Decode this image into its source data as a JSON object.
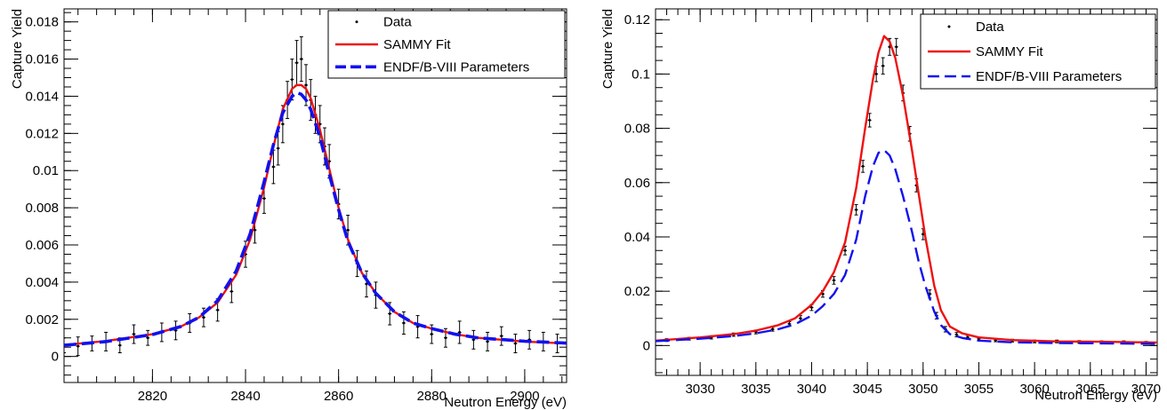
{
  "chart_data": [
    {
      "type": "scatter",
      "xlabel": "Neutron Energy (eV)",
      "ylabel": "Capture Yield",
      "xlim": [
        2801,
        2909
      ],
      "ylim": [
        -0.0014,
        0.0187
      ],
      "xticks": [
        2820,
        2840,
        2860,
        2880,
        2900
      ],
      "xtick_labels": [
        "2820",
        "2840",
        "2860",
        "2880",
        "2900"
      ],
      "yticks": [
        0,
        0.002,
        0.004,
        0.006,
        0.008,
        0.01,
        0.012,
        0.014,
        0.016,
        0.018
      ],
      "ytick_labels": [
        "0",
        "0.002",
        "0.004",
        "0.006",
        "0.008",
        "0.01",
        "0.012",
        "0.014",
        "0.016",
        "0.018"
      ],
      "legend_position": "top-right",
      "grid": false,
      "series": [
        {
          "name": "Data",
          "style": "points-with-errors",
          "color": "#000000",
          "x": [
            2801.0,
            2804.0,
            2807.0,
            2810.0,
            2813.0,
            2816.0,
            2819.0,
            2822.0,
            2825.0,
            2828.0,
            2831.0,
            2834.0,
            2837.0,
            2840.0,
            2842.0,
            2844.0,
            2846.0,
            2847.0,
            2848.0,
            2849.0,
            2850.0,
            2851.0,
            2852.0,
            2853.0,
            2854.0,
            2855.0,
            2856.0,
            2857.0,
            2858.0,
            2860.0,
            2862.0,
            2864.0,
            2866.0,
            2868.0,
            2871.0,
            2874.0,
            2877.0,
            2880.0,
            2883.0,
            2886.0,
            2889.0,
            2892.0,
            2895.0,
            2898.0,
            2901.0,
            2904.0,
            2907.0
          ],
          "y": [
            0.0006,
            0.00055,
            0.0007,
            0.0008,
            0.0006,
            0.0012,
            0.001,
            0.0013,
            0.0014,
            0.0018,
            0.0021,
            0.0025,
            0.0035,
            0.0055,
            0.0068,
            0.0085,
            0.0102,
            0.0112,
            0.0125,
            0.0138,
            0.0149,
            0.0158,
            0.016,
            0.0146,
            0.0138,
            0.013,
            0.0125,
            0.0113,
            0.0105,
            0.0082,
            0.0068,
            0.005,
            0.0039,
            0.0033,
            0.0023,
            0.0018,
            0.0016,
            0.0012,
            0.001,
            0.0013,
            0.0009,
            0.0008,
            0.0011,
            0.0007,
            0.0009,
            0.0008,
            0.0007
          ],
          "yerr": [
            0.0004,
            0.0005,
            0.0004,
            0.0005,
            0.0004,
            0.0005,
            0.0004,
            0.0005,
            0.0005,
            0.0005,
            0.0005,
            0.0006,
            0.0006,
            0.0007,
            0.0007,
            0.0008,
            0.0009,
            0.0009,
            0.001,
            0.001,
            0.0011,
            0.0012,
            0.0012,
            0.0011,
            0.0011,
            0.001,
            0.001,
            0.001,
            0.0009,
            0.0008,
            0.0008,
            0.0007,
            0.0007,
            0.0007,
            0.0006,
            0.0006,
            0.0006,
            0.0005,
            0.0005,
            0.0006,
            0.0005,
            0.0005,
            0.0005,
            0.0005,
            0.0005,
            0.0005,
            0.0005
          ]
        },
        {
          "name": "SAMMY Fit",
          "style": "solid",
          "color": "#ee1111",
          "width": 2.4,
          "x": [
            2801,
            2810,
            2820,
            2826,
            2830,
            2834,
            2838,
            2841,
            2844,
            2846,
            2848,
            2850,
            2851,
            2852,
            2853,
            2854,
            2856,
            2858,
            2860,
            2862,
            2865,
            2868,
            2872,
            2876,
            2880,
            2885,
            2890,
            2900,
            2909
          ],
          "y": [
            0.00062,
            0.00083,
            0.0012,
            0.0016,
            0.0021,
            0.0029,
            0.0044,
            0.0063,
            0.0091,
            0.0113,
            0.0133,
            0.0144,
            0.0146,
            0.0146,
            0.0144,
            0.0139,
            0.0122,
            0.0101,
            0.008,
            0.0063,
            0.0045,
            0.0034,
            0.0024,
            0.0018,
            0.0015,
            0.0012,
            0.001,
            0.0008,
            0.0007
          ]
        },
        {
          "name": "ENDF/B-VIII Parameters",
          "style": "dashed-thick",
          "color": "#1111ee",
          "width": 3.6,
          "x": [
            2801,
            2810,
            2820,
            2826,
            2830,
            2834,
            2838,
            2841,
            2844,
            2846,
            2848,
            2850,
            2851,
            2852,
            2853,
            2854,
            2856,
            2858,
            2860,
            2862,
            2865,
            2868,
            2872,
            2876,
            2880,
            2885,
            2890,
            2900,
            2909
          ],
          "y": [
            0.0006,
            0.0008,
            0.00118,
            0.0016,
            0.0021,
            0.003,
            0.0046,
            0.0066,
            0.0094,
            0.0114,
            0.0131,
            0.014,
            0.0142,
            0.0141,
            0.0138,
            0.0133,
            0.0118,
            0.0098,
            0.0079,
            0.0062,
            0.0045,
            0.0034,
            0.0024,
            0.0018,
            0.0015,
            0.0012,
            0.001,
            0.00082,
            0.00072
          ]
        }
      ]
    },
    {
      "type": "scatter",
      "xlabel": "Neutron Energy (eV)",
      "ylabel": "Capture Yield",
      "xlim": [
        3026,
        3071
      ],
      "ylim": [
        -0.011,
        0.124
      ],
      "xticks": [
        3030,
        3035,
        3040,
        3045,
        3050,
        3055,
        3060,
        3065,
        3070
      ],
      "xtick_labels": [
        "3030",
        "3035",
        "3040",
        "3045",
        "3050",
        "3055",
        "3060",
        "3065",
        "3070"
      ],
      "yticks": [
        0,
        0.02,
        0.04,
        0.06,
        0.08,
        0.1,
        0.12
      ],
      "ytick_labels": [
        "0",
        "0.02",
        "0.04",
        "0.06",
        "0.08",
        "0.1",
        "0.12"
      ],
      "legend_position": "top-right",
      "grid": false,
      "series": [
        {
          "name": "Data",
          "style": "points-with-errors",
          "color": "#000000",
          "x": [
            3027.0,
            3029.0,
            3031.0,
            3033.0,
            3035.0,
            3036.5,
            3038.0,
            3039.0,
            3040.0,
            3041.0,
            3042.0,
            3043.0,
            3044.0,
            3044.6,
            3045.2,
            3045.8,
            3046.4,
            3047.0,
            3047.6,
            3048.2,
            3048.8,
            3049.4,
            3050.0,
            3050.6,
            3051.2,
            3052.0,
            3053.0,
            3054.0,
            3055.0,
            3056.5,
            3058.0,
            3060.0,
            3062.0,
            3064.0,
            3066.0,
            3068.0,
            3070.0
          ],
          "y": [
            0.002,
            0.0025,
            0.003,
            0.004,
            0.005,
            0.006,
            0.008,
            0.01,
            0.014,
            0.019,
            0.024,
            0.035,
            0.05,
            0.066,
            0.083,
            0.1,
            0.103,
            0.11,
            0.11,
            0.093,
            0.078,
            0.059,
            0.041,
            0.019,
            0.011,
            0.006,
            0.004,
            0.003,
            0.0025,
            0.002,
            0.0018,
            0.0015,
            0.0015,
            0.0013,
            0.0012,
            0.0012,
            0.001
          ],
          "yerr": [
            0.0005,
            0.0005,
            0.0006,
            0.0006,
            0.0007,
            0.0007,
            0.0008,
            0.001,
            0.0011,
            0.0012,
            0.0014,
            0.0016,
            0.0019,
            0.0022,
            0.0025,
            0.0028,
            0.003,
            0.0031,
            0.0031,
            0.0029,
            0.0027,
            0.0024,
            0.002,
            0.0015,
            0.0012,
            0.001,
            0.0008,
            0.0007,
            0.0006,
            0.0006,
            0.0005,
            0.0005,
            0.0005,
            0.0005,
            0.0005,
            0.0005,
            0.0005
          ]
        },
        {
          "name": "SAMMY Fit",
          "style": "solid",
          "color": "#ee1111",
          "width": 2.4,
          "x": [
            3026,
            3030,
            3033,
            3035,
            3037,
            3038.5,
            3040,
            3041,
            3042,
            3043,
            3044,
            3044.8,
            3045.5,
            3046,
            3046.5,
            3047,
            3047.5,
            3048.2,
            3049,
            3049.6,
            3050.2,
            3051,
            3051.6,
            3052.4,
            3053.5,
            3055,
            3058,
            3062,
            3066,
            3071
          ],
          "y": [
            0.0018,
            0.003,
            0.0042,
            0.0055,
            0.0075,
            0.01,
            0.015,
            0.02,
            0.027,
            0.038,
            0.058,
            0.08,
            0.098,
            0.108,
            0.114,
            0.112,
            0.106,
            0.092,
            0.072,
            0.056,
            0.04,
            0.022,
            0.013,
            0.007,
            0.0045,
            0.003,
            0.002,
            0.0015,
            0.0014,
            0.0011
          ]
        },
        {
          "name": "ENDF/B-VIII Parameters",
          "style": "dashed",
          "color": "#1111ee",
          "width": 2.4,
          "x": [
            3026,
            3030,
            3033,
            3035,
            3037,
            3038.5,
            3040,
            3041,
            3042,
            3043,
            3044,
            3044.8,
            3045.5,
            3046,
            3046.5,
            3047,
            3047.5,
            3048.2,
            3049,
            3049.6,
            3050.2,
            3051,
            3051.6,
            3052.4,
            3053.5,
            3055,
            3058,
            3062,
            3066,
            3071
          ],
          "y": [
            0.0016,
            0.0025,
            0.0035,
            0.0045,
            0.006,
            0.0078,
            0.011,
            0.0145,
            0.019,
            0.026,
            0.039,
            0.055,
            0.066,
            0.071,
            0.072,
            0.07,
            0.065,
            0.055,
            0.042,
            0.031,
            0.022,
            0.0125,
            0.0075,
            0.0042,
            0.0028,
            0.0018,
            0.0012,
            0.0009,
            0.0008,
            0.0006
          ]
        }
      ]
    }
  ]
}
